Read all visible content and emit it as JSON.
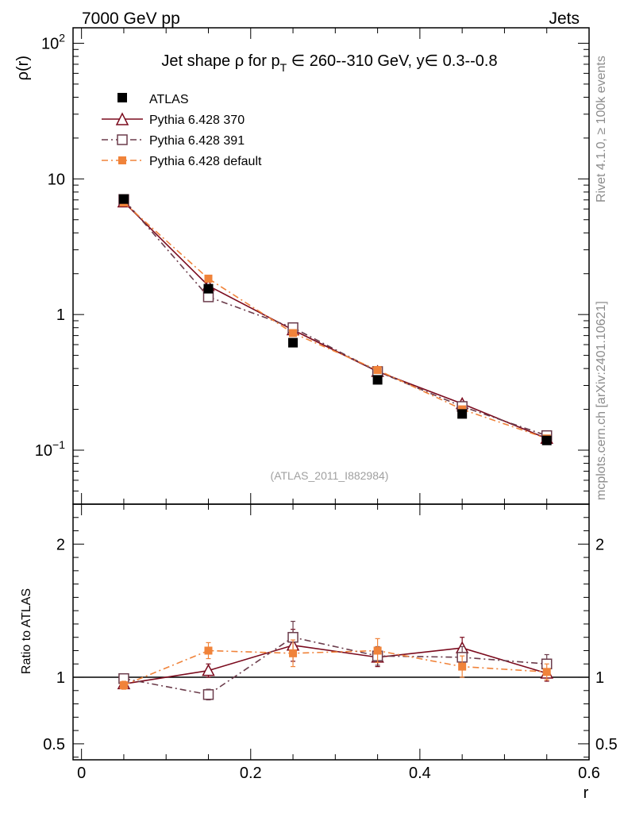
{
  "header": {
    "left": "7000 GeV pp",
    "right": "Jets"
  },
  "side_labels": {
    "rivet": "Rivet 4.1.0, ≥ 100k events",
    "mcplots": "mcplots.cern.ch [arXiv:2401.10621]"
  },
  "chart_data": {
    "type": "line",
    "title": "Jet shape ρ for p_T ∈ 260--310 GeV, y∈ 0.3--0.8",
    "title_parts": {
      "pre": "Jet shape ρ for p",
      "sub": "T",
      "post": " ∈ 260--310 GeV, y∈ 0.3--0.8"
    },
    "analysis_label": "(ATLAS_2011_I882984)",
    "xlabel": "r",
    "ylabel": "ρ(r)",
    "ratio_ylabel": "Ratio to ATLAS",
    "xlim": [
      -0.01,
      0.6
    ],
    "ylim": [
      0.04,
      130
    ],
    "yscale": "log",
    "ratio_ylim": [
      0.38,
      2.3
    ],
    "x_ticks": [
      0,
      0.2,
      0.4,
      0.6
    ],
    "x_tick_labels": [
      "0",
      "0.2",
      "0.4",
      "0.6"
    ],
    "y_ticks": [
      {
        "value": 100,
        "base": "10",
        "exp": "2"
      },
      {
        "value": 10,
        "base": "10",
        "exp": ""
      },
      {
        "value": 1,
        "base": "1",
        "exp": ""
      },
      {
        "value": 0.1,
        "base": "10",
        "exp": "−1"
      }
    ],
    "ratio_ticks": [
      {
        "value": 2,
        "label": "2"
      },
      {
        "value": 1,
        "label": "1"
      },
      {
        "value": 0.5,
        "label": "0.5"
      }
    ],
    "x": [
      0.05,
      0.15,
      0.25,
      0.35,
      0.45,
      0.55
    ],
    "data": {
      "name": "ATLAS",
      "color": "#000000",
      "values": [
        7.1,
        1.55,
        0.62,
        0.33,
        0.185,
        0.118
      ],
      "errors": [
        0.35,
        0.08,
        0.03,
        0.015,
        0.01,
        0.006
      ]
    },
    "series": [
      {
        "name": "Pythia 6.428 370",
        "color": "#7b0b1e",
        "marker": "triangle-open",
        "dash": "",
        "values": [
          6.75,
          1.63,
          0.77,
          0.38,
          0.22,
          0.122
        ],
        "ratio": [
          0.95,
          1.05,
          1.24,
          1.15,
          1.22,
          1.03
        ],
        "ratio_err": [
          0.03,
          0.05,
          0.12,
          0.07,
          0.08,
          0.06
        ]
      },
      {
        "name": "Pythia 6.428 391",
        "color": "#6b3c4b",
        "marker": "square-open",
        "dash": "8,4,2,4",
        "values": [
          7.05,
          1.35,
          0.8,
          0.38,
          0.21,
          0.128
        ],
        "ratio": [
          0.99,
          0.87,
          1.3,
          1.16,
          1.15,
          1.1
        ],
        "ratio_err": [
          0.03,
          0.04,
          0.12,
          0.07,
          0.08,
          0.07
        ]
      },
      {
        "name": "Pythia 6.428 default",
        "color": "#f0833a",
        "marker": "square-filled",
        "dash": "8,4,2,4",
        "values": [
          6.7,
          1.84,
          0.73,
          0.39,
          0.2,
          0.122
        ],
        "ratio": [
          0.94,
          1.2,
          1.18,
          1.2,
          1.08,
          1.04
        ],
        "ratio_err": [
          0.03,
          0.06,
          0.1,
          0.09,
          0.08,
          0.06
        ]
      }
    ]
  }
}
